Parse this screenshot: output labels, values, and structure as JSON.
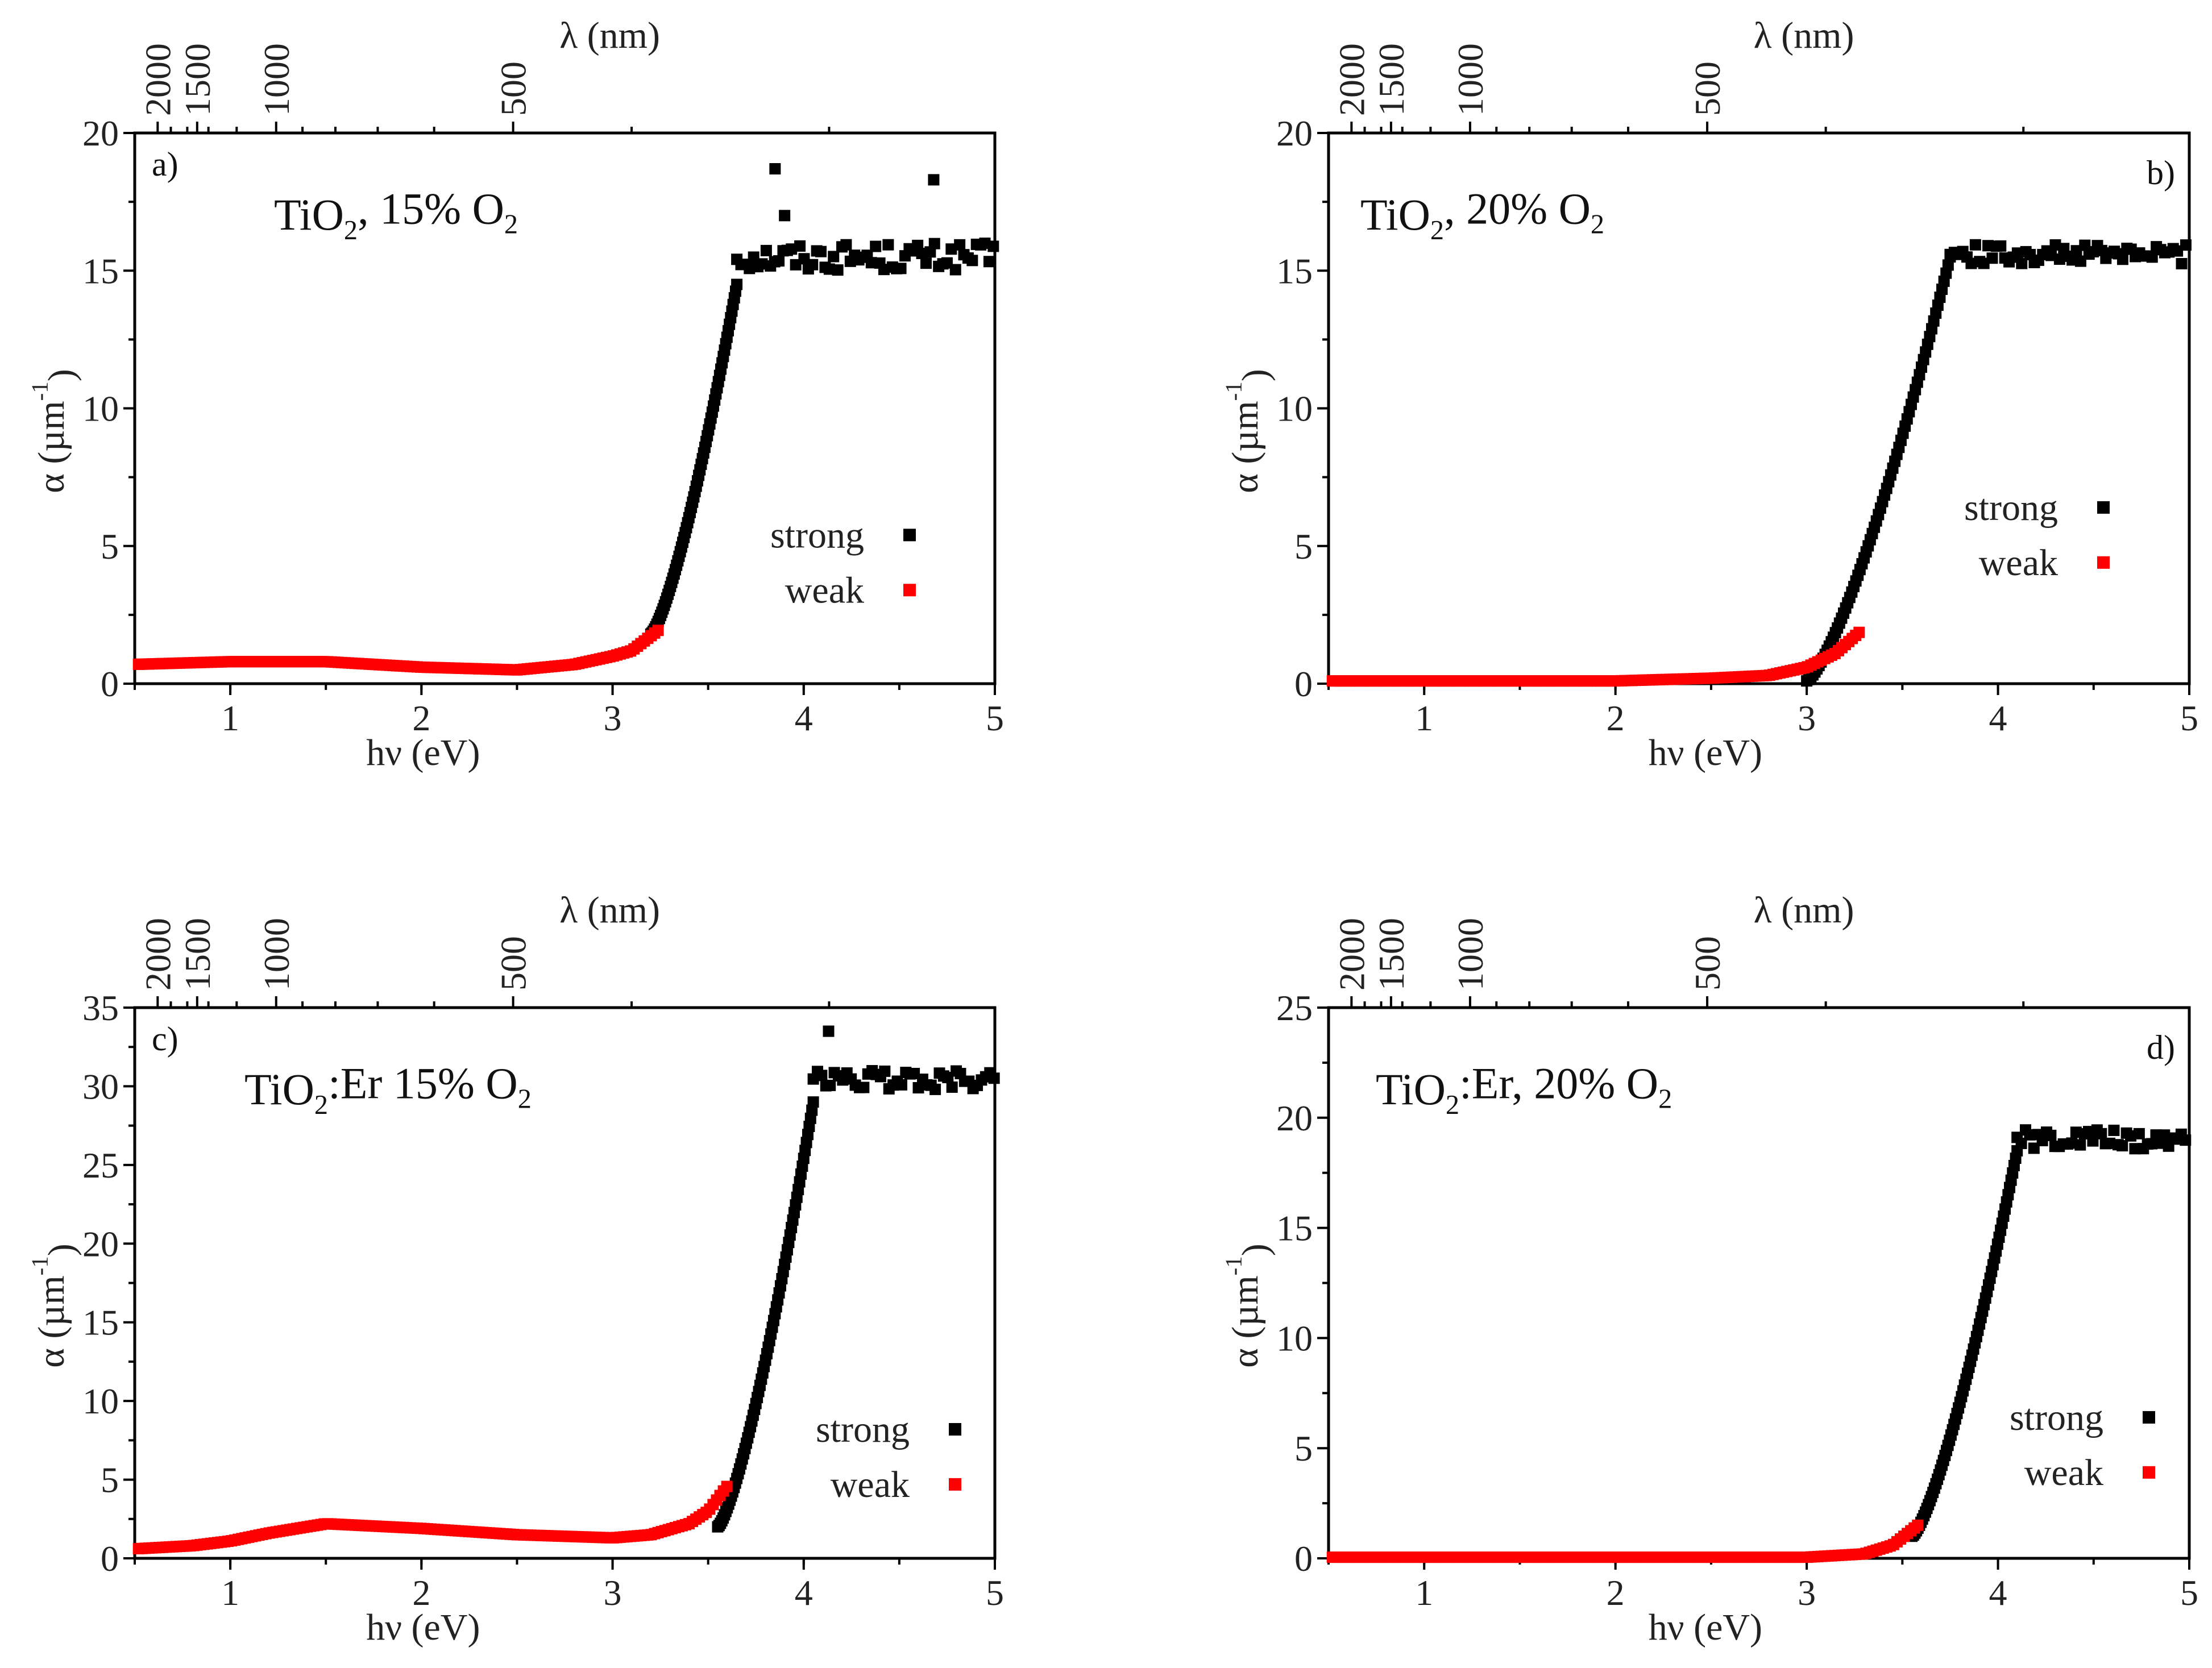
{
  "chart_data": [
    {
      "type": "scatter",
      "panel_label": "a)",
      "title_parts": [
        "TiO",
        "2",
        ", 15% O",
        "2"
      ],
      "xlabel": "hν (eV)",
      "ylabel_parts": [
        "α (µm",
        "-1",
        ")"
      ],
      "top_axis_label": "λ (nm)",
      "xlim": [
        0.5,
        5
      ],
      "ylim": [
        0,
        20
      ],
      "x_ticks": [
        "1",
        "2",
        "3",
        "4",
        "5"
      ],
      "y_ticks": [
        "0",
        "5",
        "10",
        "15",
        "20"
      ],
      "top_ticks": [
        "2000",
        "1500",
        "1000",
        "500"
      ],
      "legend": [
        "strong",
        "weak"
      ],
      "colors": {
        "strong": "#000000",
        "weak": "#ff0000"
      },
      "params": {
        "weak_base": [
          [
            0.5,
            0.7
          ],
          [
            1.0,
            0.8
          ],
          [
            1.5,
            0.8
          ],
          [
            2.0,
            0.6
          ],
          [
            2.5,
            0.5
          ],
          [
            2.8,
            0.7
          ],
          [
            3.0,
            1.0
          ],
          [
            3.1,
            1.2
          ],
          [
            3.25,
            2.0
          ]
        ],
        "weak_end": 3.25,
        "edge_start": 3.2,
        "edge_end": 3.65,
        "edge_y0": 1.8,
        "edge_y1": 14.5,
        "plateau": 15.5,
        "noise": 0.5,
        "outliers": [
          [
            3.85,
            18.7
          ],
          [
            4.68,
            18.3
          ],
          [
            3.9,
            17.0
          ]
        ],
        "legend_y": [
          5.4,
          3.4
        ]
      }
    },
    {
      "type": "scatter",
      "panel_label": "b)",
      "title_parts": [
        "TiO",
        "2",
        ", 20% O",
        "2"
      ],
      "xlabel": "hν (eV)",
      "ylabel_parts": [
        "α (µm",
        "-1",
        ")"
      ],
      "top_axis_label": "λ (nm)",
      "xlim": [
        0.5,
        5
      ],
      "ylim": [
        0,
        20
      ],
      "x_ticks": [
        "1",
        "2",
        "3",
        "4",
        "5"
      ],
      "y_ticks": [
        "0",
        "5",
        "10",
        "15",
        "20"
      ],
      "top_ticks": [
        "2000",
        "1500",
        "1000",
        "500"
      ],
      "legend": [
        "strong",
        "weak"
      ],
      "colors": {
        "strong": "#000000",
        "weak": "#ff0000"
      },
      "params": {
        "weak_base": [
          [
            0.5,
            0.1
          ],
          [
            2.0,
            0.1
          ],
          [
            2.5,
            0.2
          ],
          [
            2.8,
            0.3
          ],
          [
            3.0,
            0.6
          ],
          [
            3.15,
            1.1
          ],
          [
            3.28,
            1.9
          ]
        ],
        "weak_end": 3.28,
        "edge_start": 3.0,
        "edge_end": 3.75,
        "edge_y0": 0.1,
        "edge_y1": 15.5,
        "plateau": 15.6,
        "noise": 0.35,
        "outliers": [],
        "legend_y": [
          6.4,
          4.4
        ]
      }
    },
    {
      "type": "scatter",
      "panel_label": "c)",
      "title_parts": [
        "TiO",
        "2",
        ":Er 15% O",
        "2"
      ],
      "xlabel": "hν (eV)",
      "ylabel_parts": [
        "α (µm",
        "-1",
        ")"
      ],
      "top_axis_label": "λ (nm)",
      "xlim": [
        0.5,
        5
      ],
      "ylim": [
        0,
        35
      ],
      "x_ticks": [
        "1",
        "2",
        "3",
        "4",
        "5"
      ],
      "y_ticks": [
        "0",
        "5",
        "10",
        "15",
        "20",
        "25",
        "30",
        "35"
      ],
      "top_ticks": [
        "2000",
        "1500",
        "1000",
        "500"
      ],
      "legend": [
        "strong",
        "weak"
      ],
      "colors": {
        "strong": "#000000",
        "weak": "#ff0000"
      },
      "params": {
        "weak_base": [
          [
            0.5,
            0.6
          ],
          [
            0.8,
            0.8
          ],
          [
            1.0,
            1.1
          ],
          [
            1.2,
            1.6
          ],
          [
            1.5,
            2.2
          ],
          [
            2.0,
            1.9
          ],
          [
            2.5,
            1.5
          ],
          [
            3.0,
            1.3
          ],
          [
            3.2,
            1.5
          ],
          [
            3.4,
            2.2
          ],
          [
            3.5,
            3.0
          ],
          [
            3.6,
            4.6
          ]
        ],
        "weak_end": 3.6,
        "edge_start": 3.55,
        "edge_end": 4.05,
        "edge_y0": 2.0,
        "edge_y1": 29.0,
        "plateau": 30.4,
        "noise": 0.6,
        "outliers": [
          [
            4.13,
            33.5
          ]
        ],
        "legend_y": [
          8.2,
          4.7
        ]
      }
    },
    {
      "type": "scatter",
      "panel_label": "d)",
      "title_parts": [
        "TiO",
        "2",
        ":Er, 20% O",
        "2"
      ],
      "xlabel": "hν (eV)",
      "ylabel_parts": [
        "α (µm",
        "-1",
        ")"
      ],
      "top_axis_label": "λ (nm)",
      "xlim": [
        0.5,
        5
      ],
      "ylim": [
        0,
        25
      ],
      "x_ticks": [
        "1",
        "2",
        "3",
        "4",
        "5"
      ],
      "y_ticks": [
        "0",
        "5",
        "10",
        "15",
        "20",
        "25"
      ],
      "top_ticks": [
        "2000",
        "1500",
        "1000",
        "500"
      ],
      "legend": [
        "strong",
        "weak"
      ],
      "colors": {
        "strong": "#000000",
        "weak": "#ff0000"
      },
      "params": {
        "weak_base": [
          [
            0.5,
            0.05
          ],
          [
            3.0,
            0.05
          ],
          [
            3.3,
            0.2
          ],
          [
            3.45,
            0.6
          ],
          [
            3.58,
            1.5
          ]
        ],
        "weak_end": 3.58,
        "edge_start": 3.55,
        "edge_end": 4.1,
        "edge_y0": 1.0,
        "edge_y1": 18.5,
        "plateau": 19.0,
        "noise": 0.45,
        "outliers": [],
        "legend_y": [
          6.4,
          3.9
        ]
      }
    }
  ]
}
